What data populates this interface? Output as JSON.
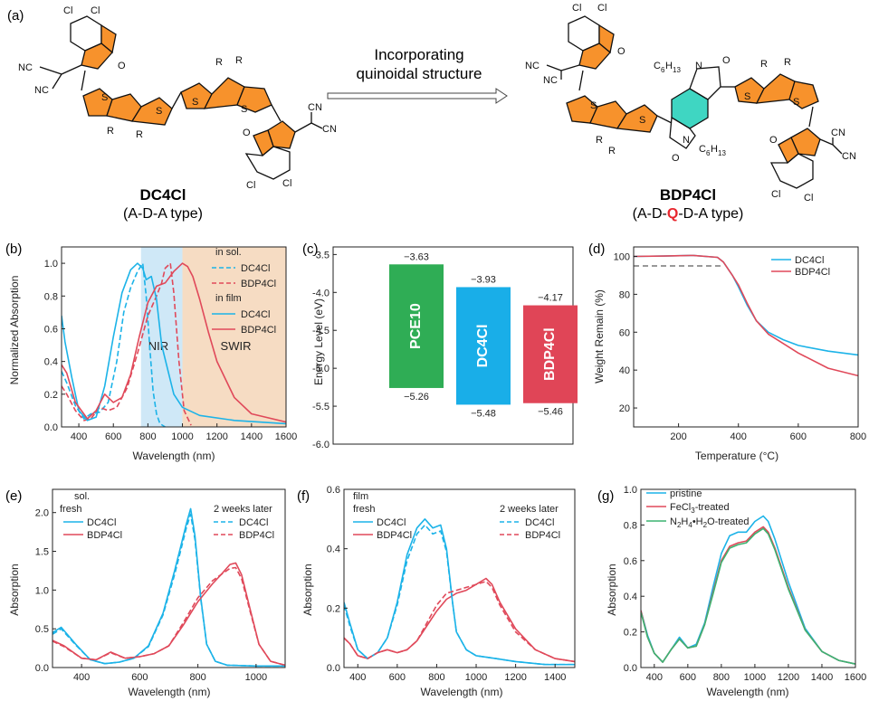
{
  "header": {
    "panel_a": "(a)",
    "arrow_text_1": "Incorporating",
    "arrow_text_2": "quinoidal structure",
    "mol1_name": "DC4Cl",
    "mol1_type": "(A-D-A type)",
    "mol2_name": "BDP4Cl",
    "mol2_type_pre": "(A-D-",
    "mol2_type_q": "Q",
    "mol2_type_post": "-D-A type)"
  },
  "atoms": {
    "cl": "Cl",
    "cn": "CN",
    "nc": "NC",
    "o": "O",
    "s": "S",
    "r": "R",
    "n": "N",
    "hexyl_c": "C",
    "hexyl_c_sub": "6",
    "hexyl_h": "H",
    "hexyl_h_sub": "13"
  },
  "colors": {
    "blue": "#1cb3e8",
    "red": "#e0495a",
    "green": "#3cb371",
    "orange": "#f7922c",
    "teal": "#3fd6c2",
    "nir_band": "#cfe8f7",
    "swir_band": "#f6dcc3",
    "q_red": "#e8262d",
    "pce10_bar": "#2fad55",
    "dc4cl_bar": "#19aee8",
    "bdp4cl_bar": "#e04557"
  },
  "chart_data": [
    {
      "panel": "(b)",
      "type": "line",
      "xlabel": "Wavelength (nm)",
      "ylabel": "Normalized Absorption",
      "xlim": [
        300,
        1600
      ],
      "ylim": [
        0,
        1.1
      ],
      "xticks": [
        400,
        600,
        800,
        1000,
        1200,
        1400,
        1600
      ],
      "yticks": [
        0.0,
        0.2,
        0.4,
        0.6,
        0.8,
        1.0
      ],
      "bands": [
        {
          "label": "NIR",
          "x0": 760,
          "x1": 1000
        },
        {
          "label": "SWIR",
          "x0": 1000,
          "x1": 1600
        }
      ],
      "legend_groups": [
        "in sol.",
        "in film"
      ],
      "series": [
        {
          "name": "DC4Cl",
          "group": "in sol.",
          "style": "dashed",
          "color": "blue",
          "x": [
            300,
            330,
            380,
            430,
            470,
            520,
            570,
            620,
            660,
            700,
            740,
            770,
            790,
            810,
            830,
            850,
            870,
            900
          ],
          "y": [
            0.34,
            0.27,
            0.13,
            0.05,
            0.08,
            0.09,
            0.15,
            0.4,
            0.7,
            0.85,
            0.95,
            1.0,
            0.8,
            0.5,
            0.22,
            0.08,
            0.02,
            0.0
          ]
        },
        {
          "name": "BDP4Cl",
          "group": "in sol.",
          "style": "dashed",
          "color": "red",
          "x": [
            300,
            330,
            380,
            430,
            470,
            520,
            570,
            620,
            680,
            740,
            800,
            850,
            880,
            900,
            930,
            950,
            980,
            1010,
            1050
          ],
          "y": [
            0.25,
            0.2,
            0.1,
            0.04,
            0.05,
            0.12,
            0.1,
            0.12,
            0.24,
            0.45,
            0.68,
            0.8,
            0.88,
            0.97,
            1.0,
            0.82,
            0.4,
            0.1,
            0.01
          ]
        },
        {
          "name": "DC4Cl",
          "group": "in film",
          "style": "solid",
          "color": "blue",
          "x": [
            300,
            320,
            360,
            400,
            450,
            500,
            550,
            600,
            650,
            700,
            740,
            770,
            790,
            820,
            850,
            880,
            950,
            1000,
            1100,
            1300,
            1600
          ],
          "y": [
            0.68,
            0.52,
            0.3,
            0.1,
            0.04,
            0.06,
            0.25,
            0.55,
            0.82,
            0.96,
            1.0,
            0.97,
            0.9,
            0.92,
            0.78,
            0.5,
            0.2,
            0.12,
            0.07,
            0.04,
            0.02
          ]
        },
        {
          "name": "BDP4Cl",
          "group": "in film",
          "style": "solid",
          "color": "red",
          "x": [
            300,
            330,
            380,
            450,
            500,
            550,
            600,
            650,
            700,
            750,
            800,
            850,
            900,
            950,
            1000,
            1030,
            1060,
            1100,
            1150,
            1200,
            1300,
            1400,
            1600
          ],
          "y": [
            0.38,
            0.33,
            0.15,
            0.05,
            0.1,
            0.2,
            0.15,
            0.18,
            0.32,
            0.55,
            0.76,
            0.86,
            0.88,
            0.95,
            1.0,
            0.98,
            0.92,
            0.78,
            0.58,
            0.4,
            0.18,
            0.08,
            0.03
          ]
        }
      ]
    },
    {
      "panel": "(c)",
      "type": "bar",
      "ylabel": "Energy Level (eV)",
      "ylim": [
        -6.0,
        -3.4
      ],
      "yticks": [
        -3.5,
        -4.0,
        -4.5,
        -5.0,
        -5.5,
        -6.0
      ],
      "ytick_labels": [
        "-3.5",
        "-4.0",
        "-4.5",
        "-5.0",
        "-5.5",
        "-6.0"
      ],
      "categories": [
        "PCE10",
        "DC4Cl",
        "BDP4Cl"
      ],
      "lumo": [
        -3.63,
        -3.93,
        -4.17
      ],
      "homo": [
        -5.26,
        -5.48,
        -5.46
      ],
      "lumo_labels": [
        "−3.63",
        "−3.93",
        "−4.17"
      ],
      "homo_labels": [
        "−5.26",
        "−5.48",
        "−5.46"
      ],
      "bar_colors": [
        "pce10_bar",
        "dc4cl_bar",
        "bdp4cl_bar"
      ]
    },
    {
      "panel": "(d)",
      "type": "line",
      "xlabel": "Temperature (°C)",
      "ylabel": "Weight Remain (%)",
      "xlim": [
        50,
        800
      ],
      "ylim": [
        10,
        105
      ],
      "xticks": [
        200,
        400,
        600,
        800
      ],
      "yticks": [
        20,
        40,
        60,
        80,
        100
      ],
      "reference_line": 95,
      "series": [
        {
          "name": "DC4Cl",
          "color": "blue",
          "x": [
            50,
            150,
            250,
            330,
            350,
            380,
            400,
            430,
            460,
            500,
            550,
            600,
            700,
            800
          ],
          "y": [
            100,
            100.2,
            100.5,
            99.5,
            97,
            90,
            84,
            74,
            66,
            60,
            56,
            53,
            50,
            48
          ]
        },
        {
          "name": "BDP4Cl",
          "color": "red",
          "x": [
            50,
            150,
            250,
            330,
            350,
            380,
            400,
            430,
            460,
            500,
            550,
            600,
            700,
            800
          ],
          "y": [
            100,
            100.2,
            100.5,
            99.5,
            97,
            90,
            85,
            75,
            66,
            59,
            54,
            49,
            41,
            37
          ]
        }
      ]
    },
    {
      "panel": "(e)",
      "type": "line",
      "xlabel": "Wavelength (nm)",
      "ylabel": "Absorption",
      "xlim": [
        300,
        1100
      ],
      "ylim": [
        0,
        2.3
      ],
      "xticks": [
        400,
        600,
        800,
        1000
      ],
      "yticks": [
        0.0,
        0.5,
        1.0,
        1.5,
        2.0
      ],
      "state_label": "sol.",
      "legend_groups": [
        "fresh",
        "2 weeks later"
      ],
      "series": [
        {
          "name": "DC4Cl",
          "group": "fresh",
          "style": "solid",
          "color": "blue",
          "x": [
            300,
            330,
            380,
            430,
            480,
            530,
            580,
            630,
            680,
            720,
            740,
            760,
            775,
            790,
            810,
            830,
            860,
            900,
            1000,
            1100
          ],
          "y": [
            0.45,
            0.52,
            0.3,
            0.1,
            0.05,
            0.07,
            0.12,
            0.28,
            0.7,
            1.25,
            1.55,
            1.85,
            2.05,
            1.7,
            0.9,
            0.3,
            0.08,
            0.03,
            0.02,
            0.02
          ]
        },
        {
          "name": "BDP4Cl",
          "group": "fresh",
          "style": "solid",
          "color": "red",
          "x": [
            300,
            340,
            400,
            450,
            500,
            550,
            600,
            650,
            700,
            750,
            800,
            850,
            880,
            910,
            930,
            950,
            980,
            1010,
            1050,
            1100
          ],
          "y": [
            0.35,
            0.28,
            0.12,
            0.1,
            0.2,
            0.12,
            0.14,
            0.18,
            0.28,
            0.55,
            0.85,
            1.08,
            1.2,
            1.33,
            1.35,
            1.2,
            0.75,
            0.3,
            0.08,
            0.03
          ]
        },
        {
          "name": "DC4Cl",
          "group": "2 weeks later",
          "style": "dashed",
          "color": "blue",
          "x": [
            300,
            330,
            380,
            430,
            480,
            530,
            580,
            630,
            680,
            720,
            740,
            760,
            775,
            790,
            810,
            830,
            860,
            900,
            1000,
            1100
          ],
          "y": [
            0.43,
            0.5,
            0.29,
            0.1,
            0.05,
            0.07,
            0.12,
            0.27,
            0.68,
            1.2,
            1.5,
            1.8,
            1.98,
            1.65,
            0.88,
            0.3,
            0.08,
            0.03,
            0.02,
            0.02
          ]
        },
        {
          "name": "BDP4Cl",
          "group": "2 weeks later",
          "style": "dashed",
          "color": "red",
          "x": [
            300,
            340,
            400,
            450,
            500,
            550,
            600,
            650,
            700,
            750,
            800,
            850,
            880,
            910,
            930,
            950,
            980,
            1010,
            1050,
            1100
          ],
          "y": [
            0.34,
            0.27,
            0.12,
            0.1,
            0.19,
            0.12,
            0.14,
            0.18,
            0.28,
            0.58,
            0.9,
            1.12,
            1.2,
            1.28,
            1.29,
            1.15,
            0.72,
            0.3,
            0.08,
            0.03
          ]
        }
      ]
    },
    {
      "panel": "(f)",
      "type": "line",
      "xlabel": "Wavelength (nm)",
      "ylabel": "Absorption",
      "xlim": [
        330,
        1500
      ],
      "ylim": [
        0,
        0.6
      ],
      "xticks": [
        400,
        600,
        800,
        1000,
        1200,
        1400
      ],
      "yticks": [
        0.0,
        0.2,
        0.4,
        0.6
      ],
      "state_label": "film",
      "legend_groups": [
        "fresh",
        "2 weeks later"
      ],
      "series": [
        {
          "name": "DC4Cl",
          "group": "fresh",
          "style": "solid",
          "color": "blue",
          "x": [
            330,
            360,
            400,
            450,
            500,
            550,
            600,
            650,
            700,
            740,
            780,
            820,
            850,
            880,
            900,
            950,
            1000,
            1100,
            1200,
            1350,
            1500
          ],
          "y": [
            0.22,
            0.15,
            0.06,
            0.03,
            0.05,
            0.1,
            0.22,
            0.38,
            0.47,
            0.5,
            0.47,
            0.48,
            0.4,
            0.22,
            0.12,
            0.06,
            0.04,
            0.03,
            0.02,
            0.01,
            0.01
          ]
        },
        {
          "name": "BDP4Cl",
          "group": "fresh",
          "style": "solid",
          "color": "red",
          "x": [
            330,
            360,
            400,
            450,
            500,
            550,
            600,
            650,
            700,
            750,
            800,
            850,
            900,
            950,
            1000,
            1050,
            1080,
            1120,
            1200,
            1300,
            1400,
            1500
          ],
          "y": [
            0.1,
            0.08,
            0.04,
            0.03,
            0.05,
            0.06,
            0.05,
            0.06,
            0.09,
            0.14,
            0.19,
            0.23,
            0.25,
            0.26,
            0.28,
            0.3,
            0.28,
            0.22,
            0.13,
            0.06,
            0.03,
            0.02
          ]
        },
        {
          "name": "DC4Cl",
          "group": "2 weeks later",
          "style": "dashed",
          "color": "blue",
          "x": [
            330,
            360,
            400,
            450,
            500,
            550,
            600,
            650,
            700,
            740,
            780,
            820,
            850,
            880,
            900,
            950,
            1000,
            1100,
            1200,
            1350,
            1500
          ],
          "y": [
            0.21,
            0.14,
            0.06,
            0.03,
            0.05,
            0.1,
            0.21,
            0.36,
            0.45,
            0.48,
            0.45,
            0.46,
            0.39,
            0.22,
            0.12,
            0.06,
            0.04,
            0.03,
            0.02,
            0.01,
            0.01
          ]
        },
        {
          "name": "BDP4Cl",
          "group": "2 weeks later",
          "style": "dashed",
          "color": "red",
          "x": [
            330,
            360,
            400,
            450,
            500,
            550,
            600,
            650,
            700,
            750,
            800,
            850,
            900,
            950,
            1000,
            1050,
            1080,
            1120,
            1200,
            1300,
            1400,
            1500
          ],
          "y": [
            0.1,
            0.08,
            0.04,
            0.03,
            0.05,
            0.06,
            0.05,
            0.06,
            0.09,
            0.15,
            0.21,
            0.25,
            0.26,
            0.27,
            0.28,
            0.29,
            0.27,
            0.21,
            0.12,
            0.06,
            0.03,
            0.02
          ]
        }
      ]
    },
    {
      "panel": "(g)",
      "type": "line",
      "xlabel": "Wavelength (nm)",
      "ylabel": "Absorption",
      "xlim": [
        320,
        1600
      ],
      "ylim": [
        0,
        1.0
      ],
      "xticks": [
        400,
        600,
        800,
        1000,
        1200,
        1400,
        1600
      ],
      "yticks": [
        0.0,
        0.2,
        0.4,
        0.6,
        0.8,
        1.0
      ],
      "series": [
        {
          "name": "pristine",
          "color": "blue",
          "x": [
            320,
            360,
            400,
            450,
            500,
            550,
            600,
            650,
            700,
            750,
            800,
            850,
            900,
            950,
            1000,
            1050,
            1080,
            1120,
            1200,
            1300,
            1400,
            1500,
            1600
          ],
          "y": [
            0.32,
            0.18,
            0.08,
            0.03,
            0.1,
            0.17,
            0.11,
            0.13,
            0.25,
            0.45,
            0.64,
            0.74,
            0.76,
            0.76,
            0.82,
            0.85,
            0.82,
            0.72,
            0.48,
            0.22,
            0.09,
            0.04,
            0.02
          ]
        },
        {
          "name": "FeCl3-treated",
          "color": "red",
          "x": [
            320,
            360,
            400,
            450,
            500,
            550,
            600,
            650,
            700,
            750,
            800,
            850,
            900,
            950,
            1000,
            1050,
            1080,
            1120,
            1200,
            1300,
            1400,
            1500,
            1600
          ],
          "y": [
            0.32,
            0.17,
            0.08,
            0.03,
            0.1,
            0.16,
            0.11,
            0.12,
            0.24,
            0.42,
            0.6,
            0.68,
            0.7,
            0.71,
            0.76,
            0.79,
            0.76,
            0.67,
            0.45,
            0.21,
            0.09,
            0.04,
            0.02
          ]
        },
        {
          "name": "N2H4·H2O-treated",
          "color": "green",
          "x": [
            320,
            360,
            400,
            450,
            500,
            550,
            600,
            650,
            700,
            750,
            800,
            850,
            900,
            950,
            1000,
            1050,
            1080,
            1120,
            1200,
            1300,
            1400,
            1500,
            1600
          ],
          "y": [
            0.31,
            0.17,
            0.08,
            0.03,
            0.1,
            0.16,
            0.11,
            0.12,
            0.24,
            0.41,
            0.59,
            0.67,
            0.69,
            0.7,
            0.75,
            0.78,
            0.75,
            0.66,
            0.44,
            0.21,
            0.09,
            0.04,
            0.02
          ]
        }
      ],
      "legend_labels": {
        "pristine": "pristine",
        "fecl3_pre": "FeCl",
        "fecl3_sub": "3",
        "fecl3_post": "-treated",
        "n2h4_pre": "N",
        "n2h4_s1": "2",
        "n2h4_mid": "H",
        "n2h4_s2": "4",
        "n2h4_dot": "•H",
        "n2h4_s3": "2",
        "n2h4_post": "O-treated"
      }
    }
  ]
}
